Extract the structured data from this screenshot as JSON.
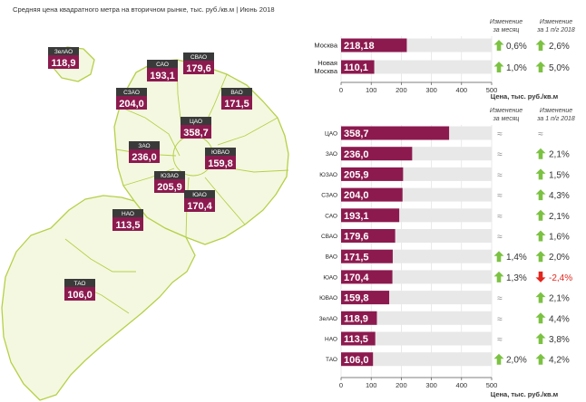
{
  "title": "Средняя цена квадратного метра на вторичном рынке, тыс. руб./кв.м | Июнь 2018",
  "colors": {
    "bar": "#8c1a4f",
    "track": "#e8e8e8",
    "up": "#7cc242",
    "down": "#e2261d",
    "map_fill": "#f4f8e0",
    "map_stroke": "#b5d048",
    "label_head": "#3a3a3a"
  },
  "map": {
    "districts": [
      {
        "name": "ЗелАО",
        "value": "118,9"
      },
      {
        "name": "САО",
        "value": "193,1"
      },
      {
        "name": "СВАО",
        "value": "179,6"
      },
      {
        "name": "СЗАО",
        "value": "204,0"
      },
      {
        "name": "ВАО",
        "value": "171,5"
      },
      {
        "name": "ЦАО",
        "value": "358,7"
      },
      {
        "name": "ЗАО",
        "value": "236,0"
      },
      {
        "name": "ЮВАО",
        "value": "159,8"
      },
      {
        "name": "ЮЗАО",
        "value": "205,9"
      },
      {
        "name": "ЮАО",
        "value": "170,4"
      },
      {
        "name": "НАО",
        "value": "113,5"
      },
      {
        "name": "ТАО",
        "value": "106,0"
      }
    ]
  },
  "chart_data": [
    {
      "type": "bar",
      "orientation": "horizontal",
      "categories": [
        "Москва",
        "Новая Москва"
      ],
      "values": [
        218.18,
        110.1
      ],
      "value_labels": [
        "218,18",
        "110,1"
      ],
      "xlim": [
        0,
        500
      ],
      "xticks": [
        "0",
        "100",
        "200",
        "300",
        "400",
        "500"
      ],
      "xlabel": "Цена, тыс. руб./кв.м",
      "col_month": "Изменение за месяц",
      "col_year": "Изменение за 1 п/г 2018",
      "month": [
        {
          "dir": "up",
          "text": "0,6%"
        },
        {
          "dir": "up",
          "text": "1,0%"
        }
      ],
      "year": [
        {
          "dir": "up",
          "text": "2,6%"
        },
        {
          "dir": "up",
          "text": "5,0%"
        }
      ]
    },
    {
      "type": "bar",
      "orientation": "horizontal",
      "categories": [
        "ЦАО",
        "ЗАО",
        "ЮЗАО",
        "СЗАО",
        "САО",
        "СВАО",
        "ВАО",
        "ЮАО",
        "ЮВАО",
        "ЗелАО",
        "НАО",
        "ТАО"
      ],
      "values": [
        358.7,
        236.0,
        205.9,
        204.0,
        193.1,
        179.6,
        171.5,
        170.4,
        159.8,
        118.9,
        113.5,
        106.0
      ],
      "value_labels": [
        "358,7",
        "236,0",
        "205,9",
        "204,0",
        "193,1",
        "179,6",
        "171,5",
        "170,4",
        "159,8",
        "118,9",
        "113,5",
        "106,0"
      ],
      "xlim": [
        0,
        500
      ],
      "xticks": [
        "0",
        "100",
        "200",
        "300",
        "400",
        "500"
      ],
      "xlabel": "Цена, тыс. руб./кв.м",
      "col_month": "Изменение за месяц",
      "col_year": "Изменение за 1 п/г 2018",
      "month": [
        {
          "dir": "flat",
          "text": "≈"
        },
        {
          "dir": "flat",
          "text": "≈"
        },
        {
          "dir": "flat",
          "text": "≈"
        },
        {
          "dir": "flat",
          "text": "≈"
        },
        {
          "dir": "flat",
          "text": "≈"
        },
        {
          "dir": "flat",
          "text": "≈"
        },
        {
          "dir": "up",
          "text": "1,4%"
        },
        {
          "dir": "up",
          "text": "1,3%"
        },
        {
          "dir": "flat",
          "text": "≈"
        },
        {
          "dir": "flat",
          "text": "≈"
        },
        {
          "dir": "flat",
          "text": "≈"
        },
        {
          "dir": "up",
          "text": "2,0%"
        }
      ],
      "year": [
        {
          "dir": "flat",
          "text": "≈"
        },
        {
          "dir": "up",
          "text": "2,1%"
        },
        {
          "dir": "up",
          "text": "1,5%"
        },
        {
          "dir": "up",
          "text": "4,3%"
        },
        {
          "dir": "up",
          "text": "2,1%"
        },
        {
          "dir": "up",
          "text": "1,6%"
        },
        {
          "dir": "up",
          "text": "2,0%"
        },
        {
          "dir": "down",
          "text": "-2,4%"
        },
        {
          "dir": "up",
          "text": "2,1%"
        },
        {
          "dir": "up",
          "text": "4,4%"
        },
        {
          "dir": "up",
          "text": "3,8%"
        },
        {
          "dir": "up",
          "text": "4,2%"
        }
      ]
    }
  ]
}
